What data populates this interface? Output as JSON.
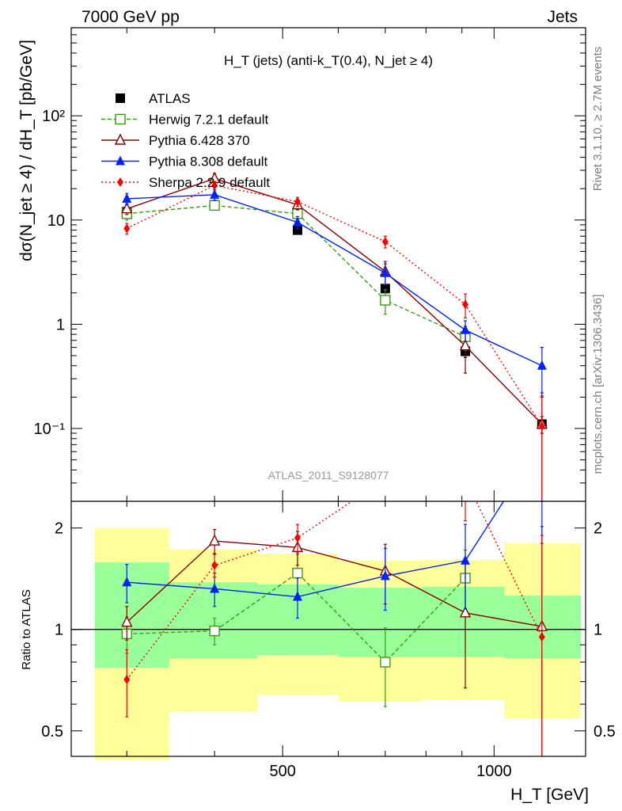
{
  "header": {
    "left": "7000 GeV pp",
    "right": "Jets"
  },
  "side": {
    "rivet": "Rivet 3.1.10, ≥ 2.7M events",
    "mcplots": "mcplots.cern.ch [arXiv:1306.3436]"
  },
  "chart_data": [
    {
      "type": "line",
      "panel": "main",
      "title": "H_T (jets) (anti-k_T(0.4), N_jet ≥ 4)",
      "ylabel": "dσ(N_jet ≥ 4) / dH_T [pb/GeV]",
      "watermark": "ATLAS_2011_S9128077",
      "x_scale": "log",
      "y_scale": "log",
      "xlim": [
        250,
        1350
      ],
      "ylim": [
        0.02,
        700
      ],
      "y_tick_labels": [
        "10⁻¹",
        "1",
        "10",
        "10²"
      ],
      "legend_position": "top-left",
      "x": [
        300,
        400,
        525,
        700,
        910,
        1170
      ],
      "series": [
        {
          "name": "ATLAS",
          "color": "#000000",
          "style": "marker-only",
          "marker": "square-filled",
          "values": [
            12,
            14,
            8,
            2.2,
            0.55,
            0.11
          ],
          "err": [
            1.0,
            1.2,
            0.7,
            0.2,
            0.07,
            0.02
          ]
        },
        {
          "name": "Herwig 7.2.1 default",
          "color": "#3a9a16",
          "style": "dashed",
          "marker": "square-open",
          "values": [
            11.5,
            13.8,
            11.5,
            1.7,
            0.76,
            null
          ],
          "err": [
            1.5,
            1.0,
            1.5,
            0.45,
            0.2,
            null
          ]
        },
        {
          "name": "Pythia 6.428 370",
          "color": "#8b0000",
          "style": "solid",
          "marker": "triangle-open",
          "values": [
            12.8,
            25,
            14,
            3.2,
            0.62,
            0.11
          ],
          "err": [
            1.5,
            3.0,
            1.5,
            0.8,
            0.28,
            0.11
          ]
        },
        {
          "name": "Pythia 8.308 default",
          "color": "#0022ff",
          "style": "solid",
          "marker": "triangle-filled",
          "values": [
            16,
            17.5,
            9.5,
            3.1,
            0.88,
            0.4
          ],
          "err": [
            2.0,
            2.0,
            1.3,
            0.7,
            0.2,
            0.2
          ]
        },
        {
          "name": "Sherpa 2.2.9 default",
          "color": "#ff0000",
          "style": "dotted",
          "marker": "diamond-filled",
          "values": [
            8.3,
            21.5,
            15,
            6.2,
            1.55,
            0.105
          ],
          "err": [
            1.0,
            2.0,
            1.5,
            0.8,
            0.4,
            0.1
          ]
        }
      ]
    },
    {
      "type": "line",
      "panel": "ratio",
      "ylabel": "Ratio to ATLAS",
      "xlabel": "H_T [GeV]",
      "x_scale": "log",
      "y_scale": "log",
      "xlim": [
        250,
        1350
      ],
      "ylim": [
        0.42,
        2.4
      ],
      "x_ticks": [
        500,
        1000
      ],
      "y_ticks": [
        0.5,
        1,
        2
      ],
      "reference_line": 1,
      "bands": {
        "edges": [
          270,
          345,
          460,
          600,
          790,
          1035,
          1330
        ],
        "inner": [
          [
            0.77,
            1.58
          ],
          [
            0.82,
            1.38
          ],
          [
            0.84,
            1.36
          ],
          [
            0.83,
            1.33
          ],
          [
            0.83,
            1.34
          ],
          [
            0.82,
            1.26
          ]
        ],
        "outer": [
          [
            0.41,
            2.0
          ],
          [
            0.57,
            1.73
          ],
          [
            0.64,
            1.68
          ],
          [
            0.61,
            1.6
          ],
          [
            0.62,
            1.61
          ],
          [
            0.545,
            1.8
          ]
        ]
      },
      "x": [
        300,
        400,
        525,
        700,
        910,
        1170
      ],
      "series": [
        {
          "name": "Herwig 7.2.1 default",
          "color": "#3a9a16",
          "style": "dashed",
          "marker": "square-open",
          "values": [
            0.97,
            0.99,
            1.47,
            0.8,
            1.42,
            null
          ],
          "err": [
            0.12,
            0.09,
            0.2,
            0.21,
            0.3,
            null
          ]
        },
        {
          "name": "Pythia 6.428 370",
          "color": "#8b0000",
          "style": "solid",
          "marker": "triangle-open",
          "values": [
            1.05,
            1.83,
            1.75,
            1.49,
            1.12,
            1.02
          ],
          "err": [
            0.12,
            0.15,
            0.2,
            0.3,
            0.45,
            1.0
          ]
        },
        {
          "name": "Pythia 8.308 default",
          "color": "#0022ff",
          "style": "solid",
          "marker": "triangle-filled",
          "values": [
            1.38,
            1.32,
            1.25,
            1.44,
            1.6,
            3.6
          ],
          "err": [
            0.18,
            0.15,
            0.17,
            0.3,
            0.45,
            1.8
          ]
        },
        {
          "name": "Sherpa 2.2.9 default",
          "color": "#ff0000",
          "style": "dotted",
          "marker": "diamond-filled",
          "values": [
            0.71,
            1.55,
            1.87,
            2.8,
            2.8,
            0.95
          ],
          "err": [
            0.16,
            0.12,
            0.18,
            0.4,
            0.7,
            0.95
          ]
        }
      ]
    }
  ]
}
